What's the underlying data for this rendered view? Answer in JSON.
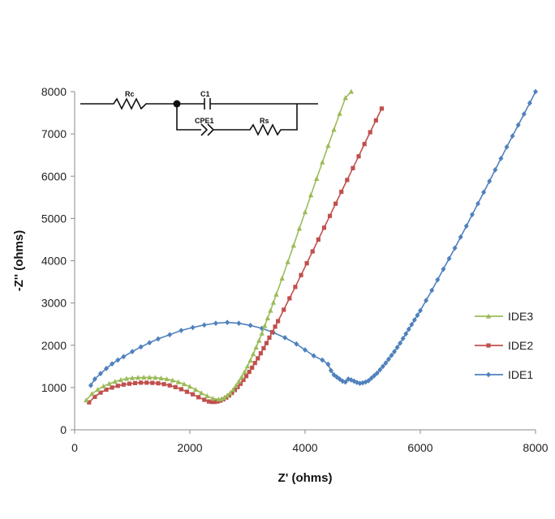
{
  "chart_data": {
    "type": "scatter",
    "xlabel": "Z' (ohms)",
    "ylabel": "-Z'' (ohms)",
    "xlim": [
      0,
      8000
    ],
    "ylim": [
      0,
      8000
    ],
    "xticks": [
      "0",
      "2000",
      "4000",
      "6000",
      "8000"
    ],
    "yticks": [
      "0",
      "1000",
      "2000",
      "3000",
      "4000",
      "5000",
      "6000",
      "7000",
      "8000"
    ],
    "grid": false,
    "legend": "right",
    "series": [
      {
        "name": "IDE3",
        "color": "#9BBB59",
        "marker": "triangle",
        "x": [
          200,
          300,
          400,
          500,
          600,
          700,
          800,
          900,
          1000,
          1100,
          1200,
          1300,
          1400,
          1500,
          1600,
          1700,
          1800,
          1900,
          2000,
          2100,
          2200,
          2300,
          2400,
          2500,
          2550,
          2600,
          2650,
          2700,
          2750,
          2800,
          2850,
          2900,
          2950,
          3000,
          3050,
          3100,
          3150,
          3200,
          3250,
          3300,
          3350,
          3400,
          3450,
          3500,
          3600,
          3700,
          3800,
          3900,
          4000,
          4100,
          4200,
          4300,
          4400,
          4500,
          4600,
          4700,
          4800
        ],
        "y": [
          700,
          850,
          950,
          1030,
          1090,
          1140,
          1180,
          1210,
          1225,
          1235,
          1240,
          1240,
          1235,
          1220,
          1200,
          1170,
          1130,
          1080,
          1020,
          950,
          870,
          800,
          740,
          720,
          730,
          760,
          810,
          870,
          950,
          1040,
          1140,
          1250,
          1370,
          1500,
          1640,
          1790,
          1950,
          2110,
          2280,
          2460,
          2640,
          2820,
          3010,
          3200,
          3580,
          3970,
          4360,
          4760,
          5150,
          5550,
          5940,
          6330,
          6720,
          7100,
          7480,
          7850,
          8000
        ]
      },
      {
        "name": "IDE2",
        "color": "#C0504D",
        "marker": "square",
        "x": [
          250,
          350,
          450,
          550,
          650,
          750,
          850,
          950,
          1050,
          1150,
          1250,
          1350,
          1450,
          1550,
          1650,
          1750,
          1850,
          1950,
          2050,
          2150,
          2250,
          2330,
          2380,
          2430,
          2480,
          2530,
          2580,
          2630,
          2680,
          2730,
          2780,
          2830,
          2880,
          2930,
          2980,
          3030,
          3080,
          3130,
          3180,
          3230,
          3280,
          3330,
          3380,
          3430,
          3480,
          3530,
          3630,
          3730,
          3830,
          3930,
          4030,
          4130,
          4230,
          4330,
          4430,
          4530,
          4630,
          4730,
          4830,
          4930,
          5030,
          5130,
          5230,
          5330
        ],
        "y": [
          650,
          780,
          880,
          950,
          1000,
          1040,
          1070,
          1090,
          1105,
          1115,
          1115,
          1110,
          1100,
          1080,
          1050,
          1010,
          960,
          900,
          840,
          770,
          710,
          670,
          660,
          660,
          670,
          690,
          720,
          760,
          810,
          870,
          940,
          1010,
          1090,
          1180,
          1270,
          1370,
          1470,
          1580,
          1690,
          1810,
          1930,
          2050,
          2180,
          2310,
          2440,
          2570,
          2840,
          3110,
          3380,
          3660,
          3940,
          4220,
          4500,
          4780,
          5060,
          5350,
          5630,
          5910,
          6190,
          6470,
          6760,
          7040,
          7320,
          7600
        ]
      },
      {
        "name": "IDE1",
        "color": "#4F81BD",
        "marker": "diamond",
        "x": [
          280,
          350,
          450,
          550,
          650,
          750,
          850,
          1000,
          1150,
          1300,
          1450,
          1650,
          1850,
          2050,
          2250,
          2450,
          2650,
          2850,
          3050,
          3250,
          3450,
          3650,
          3850,
          4000,
          4150,
          4300,
          4400,
          4450,
          4500,
          4550,
          4600,
          4650,
          4700,
          4750,
          4800,
          4850,
          4900,
          4950,
          5000,
          5050,
          5100,
          5150,
          5200,
          5250,
          5300,
          5350,
          5400,
          5450,
          5500,
          5550,
          5600,
          5650,
          5700,
          5750,
          5800,
          5850,
          5900,
          5950,
          6000,
          6100,
          6200,
          6300,
          6400,
          6500,
          6600,
          6700,
          6800,
          6900,
          7000,
          7100,
          7200,
          7300,
          7400,
          7500,
          7600,
          7700,
          7800,
          7900,
          8000
        ],
        "y": [
          1050,
          1200,
          1330,
          1450,
          1560,
          1650,
          1730,
          1850,
          1960,
          2060,
          2150,
          2250,
          2350,
          2420,
          2480,
          2520,
          2540,
          2520,
          2470,
          2400,
          2300,
          2180,
          2030,
          1890,
          1750,
          1650,
          1550,
          1400,
          1300,
          1250,
          1200,
          1150,
          1130,
          1200,
          1180,
          1150,
          1120,
          1100,
          1110,
          1130,
          1160,
          1220,
          1280,
          1340,
          1420,
          1500,
          1580,
          1670,
          1760,
          1850,
          1950,
          2050,
          2160,
          2270,
          2380,
          2490,
          2600,
          2710,
          2820,
          3060,
          3300,
          3550,
          3800,
          4050,
          4300,
          4560,
          4820,
          5090,
          5350,
          5620,
          5880,
          6150,
          6420,
          6690,
          6950,
          7210,
          7470,
          7730,
          8000
        ]
      }
    ]
  },
  "circuit": {
    "labels": [
      "Rc",
      "C1",
      "CPE1",
      "Rs"
    ]
  }
}
